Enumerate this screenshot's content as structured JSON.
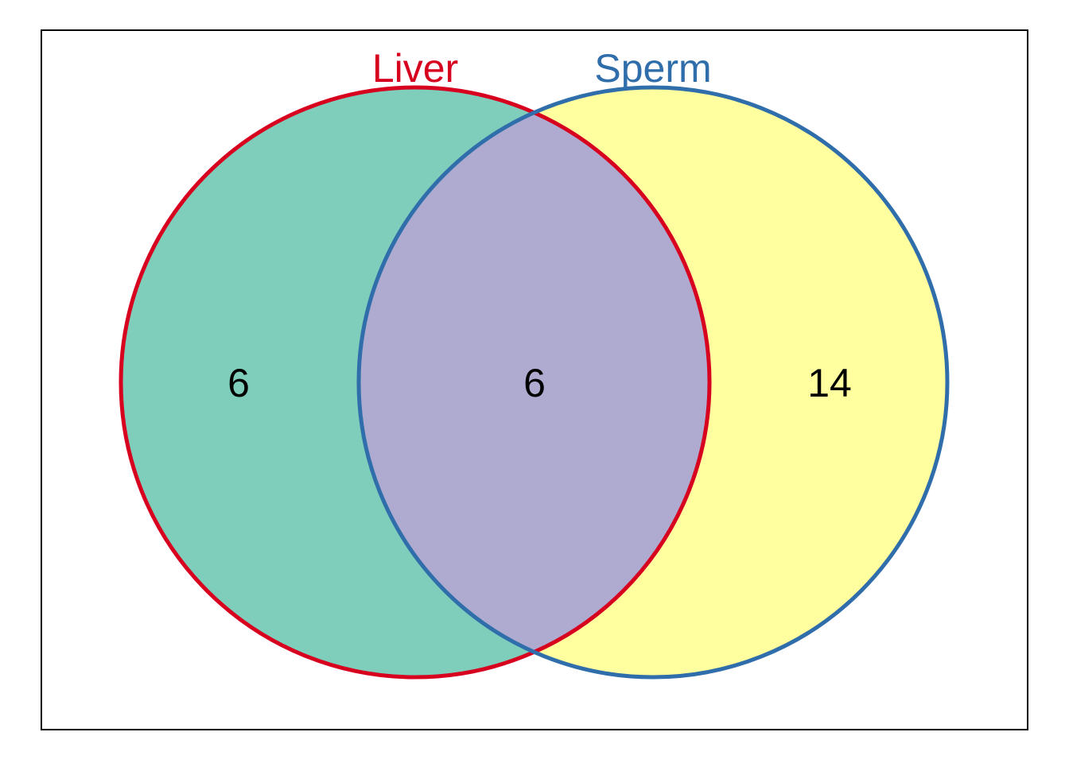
{
  "venn": {
    "sets": [
      {
        "id": "liver",
        "label": "Liver",
        "stroke_color": "#d7001e",
        "fill_color": "#7fcdbb"
      },
      {
        "id": "sperm",
        "label": "Sperm",
        "stroke_color": "#2f6eaa",
        "fill_color": "#ffff9f"
      }
    ],
    "overlap_fill_color": "#afaad0",
    "counts": {
      "liver_only": "6",
      "both": "6",
      "sperm_only": "14"
    },
    "frame_color": "#000000"
  }
}
